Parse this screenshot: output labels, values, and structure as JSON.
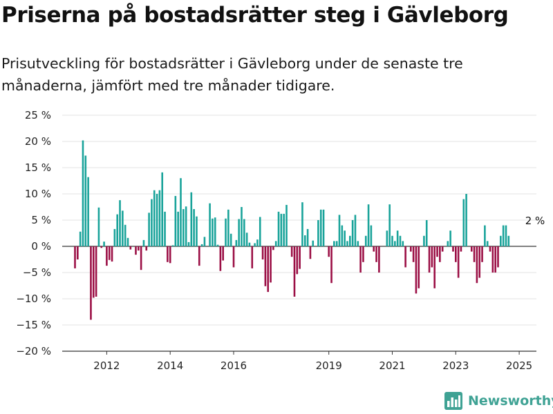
{
  "header": {
    "title": "Priserna på bostadsrätter steg i Gävleborg",
    "subtitle": "Prisutveckling för bostadsrätter i Gävleborg under de senaste tre månaderna, jämfört med tre månader tidigare."
  },
  "brand": {
    "name": "Newsworthy",
    "color": "#3fa294"
  },
  "chart_data": {
    "type": "bar",
    "x_start": "2011-01",
    "x_step": "month",
    "ylim": [
      -20,
      25
    ],
    "yticks": [
      -20,
      -15,
      -10,
      -5,
      0,
      5,
      10,
      15,
      20,
      25
    ],
    "ytick_labels": [
      "−20 %",
      "−15 %",
      "−10 %",
      "−5 %",
      "0 %",
      "5 %",
      "10 %",
      "15 %",
      "20 %",
      "25 %"
    ],
    "xticks": [
      "2012",
      "2014",
      "2016",
      "2019",
      "2021",
      "2023",
      "2025"
    ],
    "positive_color": "#19a39a",
    "negative_color": "#9b0f45",
    "grid": true,
    "annotation": {
      "text": "2 %",
      "x": "2025-07"
    },
    "values": [
      -4.2,
      -2.5,
      2.8,
      20.2,
      17.3,
      13.2,
      -14.0,
      -9.8,
      -9.6,
      7.4,
      -0.3,
      0.9,
      -3.7,
      -2.6,
      -2.9,
      3.3,
      6.1,
      8.8,
      6.8,
      4.1,
      1.6,
      -0.6,
      0.0,
      -1.6,
      -0.8,
      -4.5,
      1.2,
      -0.8,
      6.4,
      9.0,
      10.7,
      10.0,
      10.7,
      14.1,
      6.6,
      -3.0,
      -3.2,
      0.2,
      9.6,
      6.6,
      13.0,
      7.1,
      7.6,
      0.8,
      10.3,
      7.1,
      5.7,
      -3.7,
      0.4,
      1.8,
      0.0,
      8.2,
      5.3,
      5.5,
      0.3,
      -4.7,
      -2.7,
      5.3,
      7.0,
      2.4,
      -4.0,
      1.2,
      5.2,
      7.5,
      5.2,
      2.6,
      0.7,
      -4.2,
      0.6,
      1.3,
      5.6,
      -2.5,
      -7.6,
      -8.7,
      -6.9,
      -0.7,
      1.0,
      6.6,
      6.2,
      6.2,
      7.9,
      0.0,
      -2.0,
      -9.6,
      -5.3,
      -4.3,
      8.4,
      2.1,
      3.3,
      -2.4,
      1.1,
      0.0,
      5.0,
      7.0,
      7.0,
      0.0,
      -2.0,
      -7.0,
      1.0,
      1.0,
      6.0,
      4.0,
      3.0,
      1.0,
      2.0,
      5.0,
      6.0,
      1.0,
      -5.0,
      -3.0,
      2.0,
      8.0,
      4.0,
      -1.0,
      -3.0,
      -5.0,
      0.0,
      0.0,
      3.0,
      8.0,
      2.0,
      1.0,
      3.0,
      2.0,
      1.0,
      -4.0,
      0.0,
      -1.0,
      -3.0,
      -9.0,
      -8.0,
      0.0,
      2.0,
      5.0,
      -5.0,
      -4.0,
      -8.0,
      -2.0,
      -3.0,
      -1.0,
      0.0,
      1.0,
      3.0,
      -1.0,
      -3.0,
      -6.0,
      -1.0,
      9.0,
      10.0,
      0.0,
      -1.0,
      -3.0,
      -7.0,
      -6.0,
      -3.0,
      4.0,
      1.0,
      -1.0,
      -5.0,
      -5.0,
      -4.0,
      2.0,
      4.0,
      4.0,
      2.0
    ]
  }
}
